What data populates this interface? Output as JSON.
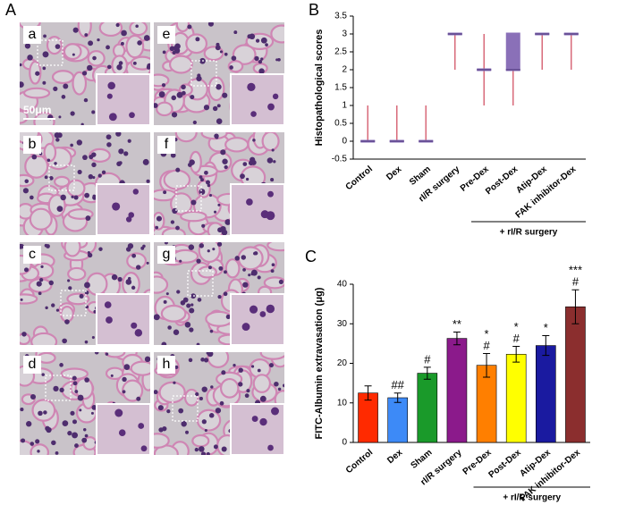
{
  "figure": {
    "panel_labels": [
      "A",
      "B",
      "C"
    ],
    "images": [
      "a",
      "b",
      "c",
      "d",
      "e",
      "f",
      "g",
      "h"
    ],
    "scale_bar": "50μm"
  },
  "chart_data": [
    {
      "type": "box",
      "ylabel": "Histopathological scores",
      "categories": [
        "Control",
        "Dex",
        "Sham",
        "rI/R surgery",
        "Pre-Dex",
        "Post-Dex",
        "Atip-Dex",
        "FAK inhibitor-Dex"
      ],
      "min": [
        0,
        0,
        0,
        2,
        1,
        1,
        2,
        2
      ],
      "q1": [
        0,
        0,
        0,
        3,
        2,
        2,
        3,
        3
      ],
      "median": [
        0,
        0,
        0,
        3,
        2,
        2,
        3,
        3
      ],
      "q3": [
        0,
        0,
        0,
        3,
        2,
        3,
        3,
        3
      ],
      "max": [
        1,
        1,
        1,
        3,
        3,
        3,
        3,
        3
      ],
      "color": "#8a70b8",
      "whisker_color": "#d86a7a",
      "ylim": [
        -0.5,
        3.5
      ],
      "yticks": [
        -0.5,
        0,
        0.5,
        1,
        1.5,
        2,
        2.5,
        3,
        3.5
      ],
      "group_label": "+ rI/R surgery"
    },
    {
      "type": "bar",
      "ylabel": "FITC-Albumin extravasation (μg)",
      "categories": [
        "Control",
        "Dex",
        "Sham",
        "rI/R surgery",
        "Pre-Dex",
        "Post-Dex",
        "Atip-Dex",
        "FAK inhibitor-Dex"
      ],
      "values": [
        12.5,
        11.3,
        17.5,
        26.3,
        19.5,
        22.3,
        24.5,
        34.3
      ],
      "errors": [
        1.8,
        1.2,
        1.5,
        1.6,
        3.0,
        2.0,
        2.5,
        4.3
      ],
      "colors": [
        "#ff2a00",
        "#3d8af7",
        "#1a9a2a",
        "#8b1a8b",
        "#ff7f00",
        "#ffff00",
        "#1a1aa0",
        "#8b2e2e"
      ],
      "significance": [
        [],
        [
          "##"
        ],
        [
          "#"
        ],
        [
          "**"
        ],
        [
          "*",
          "#"
        ],
        [
          "*",
          "#"
        ],
        [
          "*"
        ],
        [
          "***",
          "#"
        ]
      ],
      "ylim": [
        0,
        40
      ],
      "yticks": [
        0,
        10,
        20,
        30,
        40
      ],
      "group_label": "+ rI/R surgery"
    }
  ]
}
